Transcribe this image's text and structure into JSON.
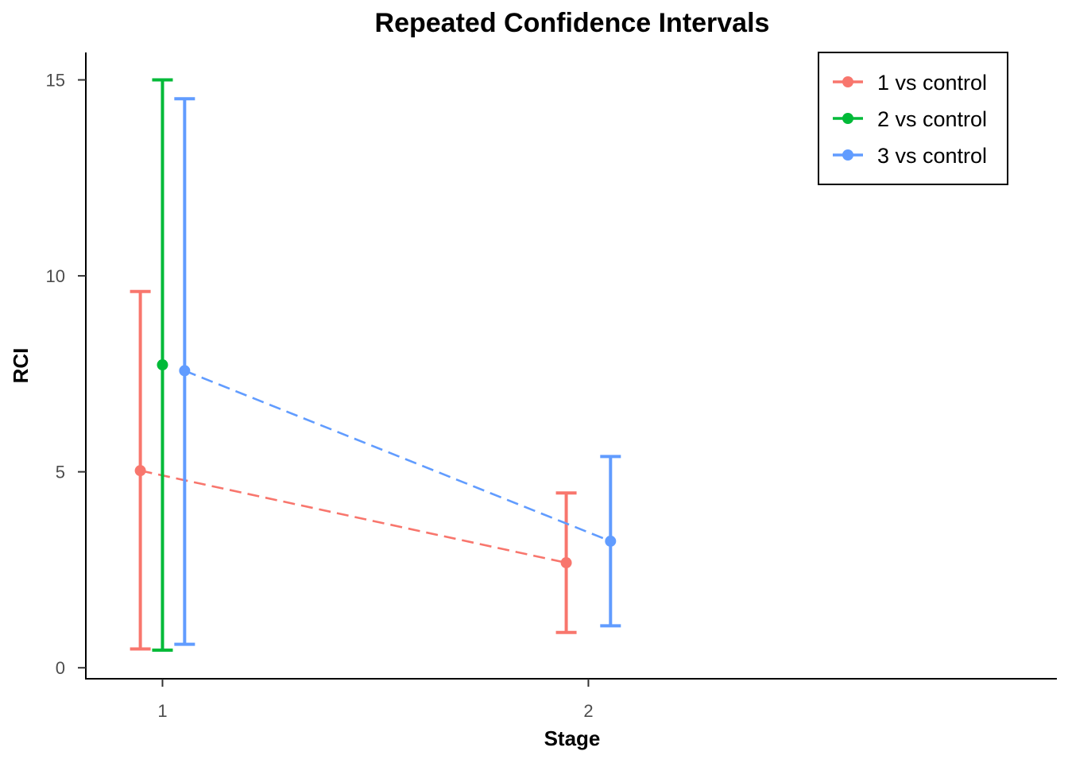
{
  "chart_data": {
    "type": "line",
    "title": "Repeated Confidence Intervals",
    "xlabel": "Stage",
    "ylabel": "RCI",
    "x_ticks": [
      "1",
      "2"
    ],
    "y_ticks": [
      "0",
      "5",
      "10",
      "15"
    ],
    "ylim": [
      -0.28,
      15.7
    ],
    "xlim": [
      0.82,
      3.1
    ],
    "grid": false,
    "legend_position": "top-right",
    "series": [
      {
        "name": "1 vs control",
        "color": "#F8766D",
        "points": [
          {
            "stage": 1,
            "estimate": 5.03,
            "lower": 0.48,
            "upper": 9.6
          },
          {
            "stage": 2,
            "estimate": 2.68,
            "lower": 0.9,
            "upper": 4.46
          }
        ]
      },
      {
        "name": "2 vs control",
        "color": "#00BA38",
        "points": [
          {
            "stage": 1,
            "estimate": 7.73,
            "lower": 0.45,
            "upper": 15.0
          }
        ]
      },
      {
        "name": "3 vs control",
        "color": "#619CFF",
        "points": [
          {
            "stage": 1,
            "estimate": 7.58,
            "lower": 0.6,
            "upper": 14.52
          },
          {
            "stage": 2,
            "estimate": 3.23,
            "lower": 1.07,
            "upper": 5.39
          }
        ]
      }
    ]
  }
}
